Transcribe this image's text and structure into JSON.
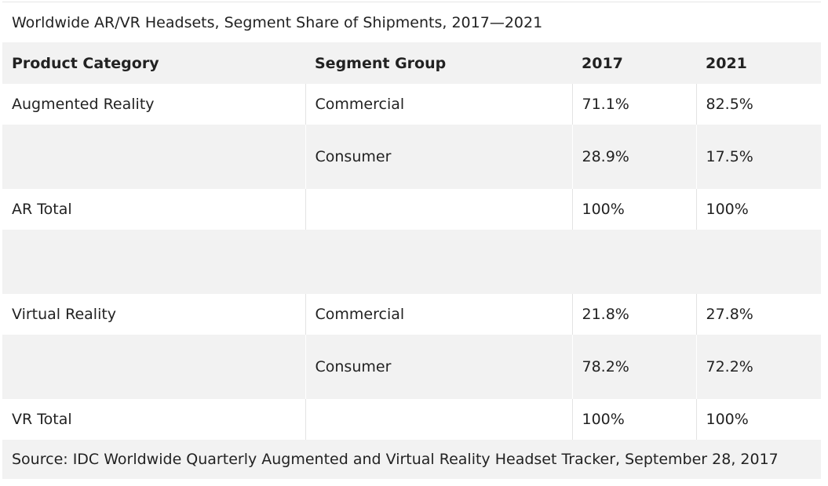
{
  "chart_data": {
    "type": "table",
    "title": "Worldwide AR/VR Headsets, Segment Share of Shipments, 2017—2021",
    "columns": [
      "Product Category",
      "Segment Group",
      "2017",
      "2021"
    ],
    "rows": [
      [
        "Augmented Reality",
        "Commercial",
        "71.1%",
        "82.5%"
      ],
      [
        "",
        "Consumer",
        "28.9%",
        "17.5%"
      ],
      [
        "AR Total",
        "",
        "100%",
        "100%"
      ],
      [
        "",
        "",
        "",
        ""
      ],
      [
        "Virtual Reality",
        "Commercial",
        "21.8%",
        "27.8%"
      ],
      [
        "",
        "Consumer",
        "78.2%",
        "72.2%"
      ],
      [
        "VR Total",
        "",
        "100%",
        "100%"
      ]
    ],
    "source": "Source: IDC Worldwide Quarterly Augmented and Virtual Reality Headset Tracker, September 28, 2017"
  },
  "colors": {
    "header_bg": "#f2f2f2",
    "alt_row_bg": "#f2f2f2",
    "text": "#222222"
  }
}
